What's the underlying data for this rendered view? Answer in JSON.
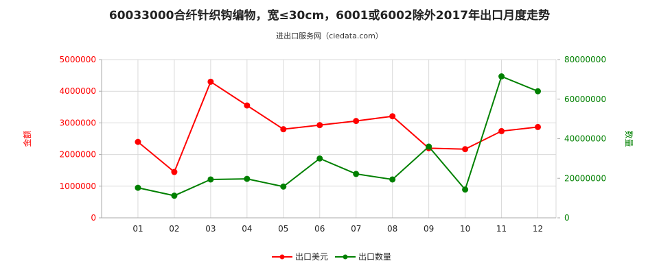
{
  "title": "60033000合纤针织钩编物，宽≤30cm，6001或6002除外2017年出口月度走势",
  "subtitle": "进出口服务网（ciedata.com）",
  "chart_data": {
    "type": "line",
    "categories": [
      "01",
      "02",
      "03",
      "04",
      "05",
      "06",
      "07",
      "08",
      "09",
      "10",
      "11",
      "12"
    ],
    "series": [
      {
        "name": "出口美元",
        "axis": "left",
        "color": "#ff0000",
        "values": [
          2400000,
          1450000,
          4300000,
          3550000,
          2800000,
          2930000,
          3060000,
          3210000,
          2200000,
          2170000,
          2740000,
          2870000
        ]
      },
      {
        "name": "出口数量",
        "axis": "right",
        "color": "#008000",
        "values": [
          15200000,
          11200000,
          19400000,
          19700000,
          15800000,
          30000000,
          22200000,
          19400000,
          36000000,
          14300000,
          71500000,
          64000000
        ]
      }
    ],
    "ylabel_left": "金额",
    "ylabel_right": "数量",
    "ylim_left": [
      0,
      5000000
    ],
    "ylim_right": [
      0,
      80000000
    ],
    "yticks_left": [
      "0",
      "1000000",
      "2000000",
      "3000000",
      "4000000",
      "5000000"
    ],
    "yticks_right": [
      "0",
      "20000000",
      "40000000",
      "60000000",
      "80000000"
    ],
    "left_axis_color": "#ff0000",
    "right_axis_color": "#008000",
    "grid": true,
    "legend_position": "bottom"
  }
}
